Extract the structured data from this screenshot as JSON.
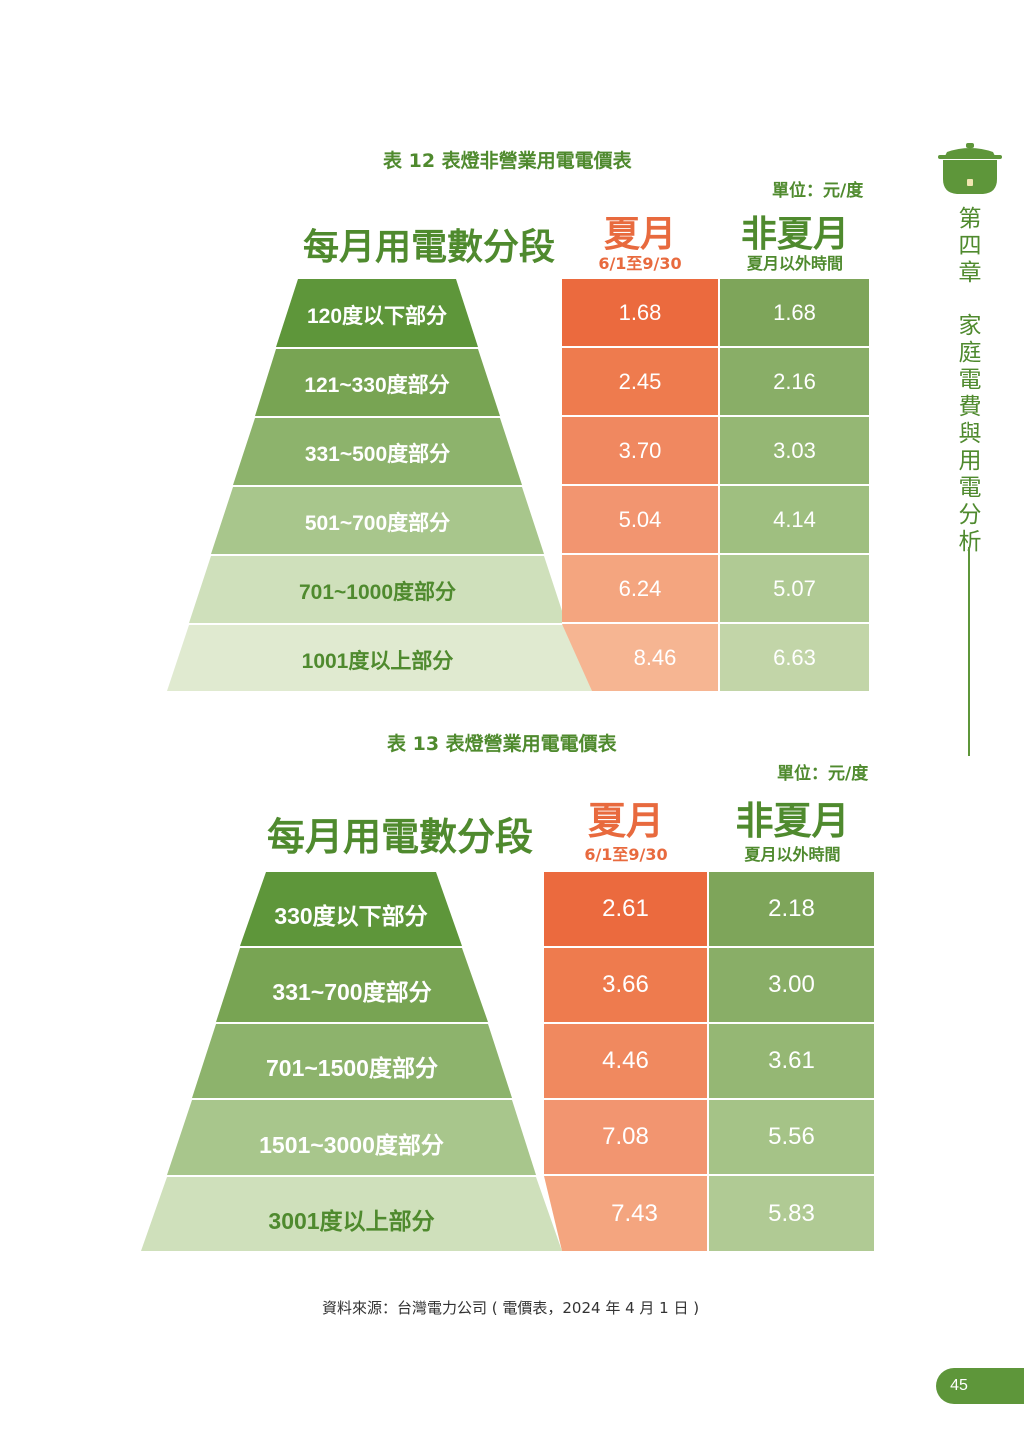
{
  "sidebar": {
    "chapter_no": "第四章",
    "chapter_title": "家庭電費與用電分析"
  },
  "table12": {
    "caption": "表 12 表燈非營業用電電價表",
    "unit": "單位：元/度",
    "col_tier": "每月用電數分段",
    "col_summer": "夏月",
    "col_summer_sub": "6/1至9/30",
    "col_nonsummer": "非夏月",
    "col_nonsummer_sub": "夏月以外時間",
    "rows": [
      {
        "tier": "120度以下部分",
        "summer": "1.68",
        "nonsummer": "1.68"
      },
      {
        "tier": "121~330度部分",
        "summer": "2.45",
        "nonsummer": "2.16"
      },
      {
        "tier": "331~500度部分",
        "summer": "3.70",
        "nonsummer": "3.03"
      },
      {
        "tier": "501~700度部分",
        "summer": "5.04",
        "nonsummer": "4.14"
      },
      {
        "tier": "701~1000度部分",
        "summer": "6.24",
        "nonsummer": "5.07"
      },
      {
        "tier": "1001度以上部分",
        "summer": "8.46",
        "nonsummer": "6.63"
      }
    ]
  },
  "table13": {
    "caption": "表 13 表燈營業用電電價表",
    "unit": "單位：元/度",
    "col_tier": "每月用電數分段",
    "col_summer": "夏月",
    "col_summer_sub": "6/1至9/30",
    "col_nonsummer": "非夏月",
    "col_nonsummer_sub": "夏月以外時間",
    "rows": [
      {
        "tier": "330度以下部分",
        "summer": "2.61",
        "nonsummer": "2.18"
      },
      {
        "tier": "331~700度部分",
        "summer": "3.66",
        "nonsummer": "3.00"
      },
      {
        "tier": "701~1500度部分",
        "summer": "4.46",
        "nonsummer": "3.61"
      },
      {
        "tier": "1501~3000度部分",
        "summer": "7.08",
        "nonsummer": "5.56"
      },
      {
        "tier": "3001度以上部分",
        "summer": "7.43",
        "nonsummer": "5.83"
      }
    ]
  },
  "source": "資料來源：台灣電力公司 ( 電價表，2024 年 4 月 1 日 )",
  "page_number": "45",
  "colors": {
    "green_dark": "#5e963a",
    "orange_dark": "#eb6a3e",
    "text_green": "#4f8a2e"
  }
}
